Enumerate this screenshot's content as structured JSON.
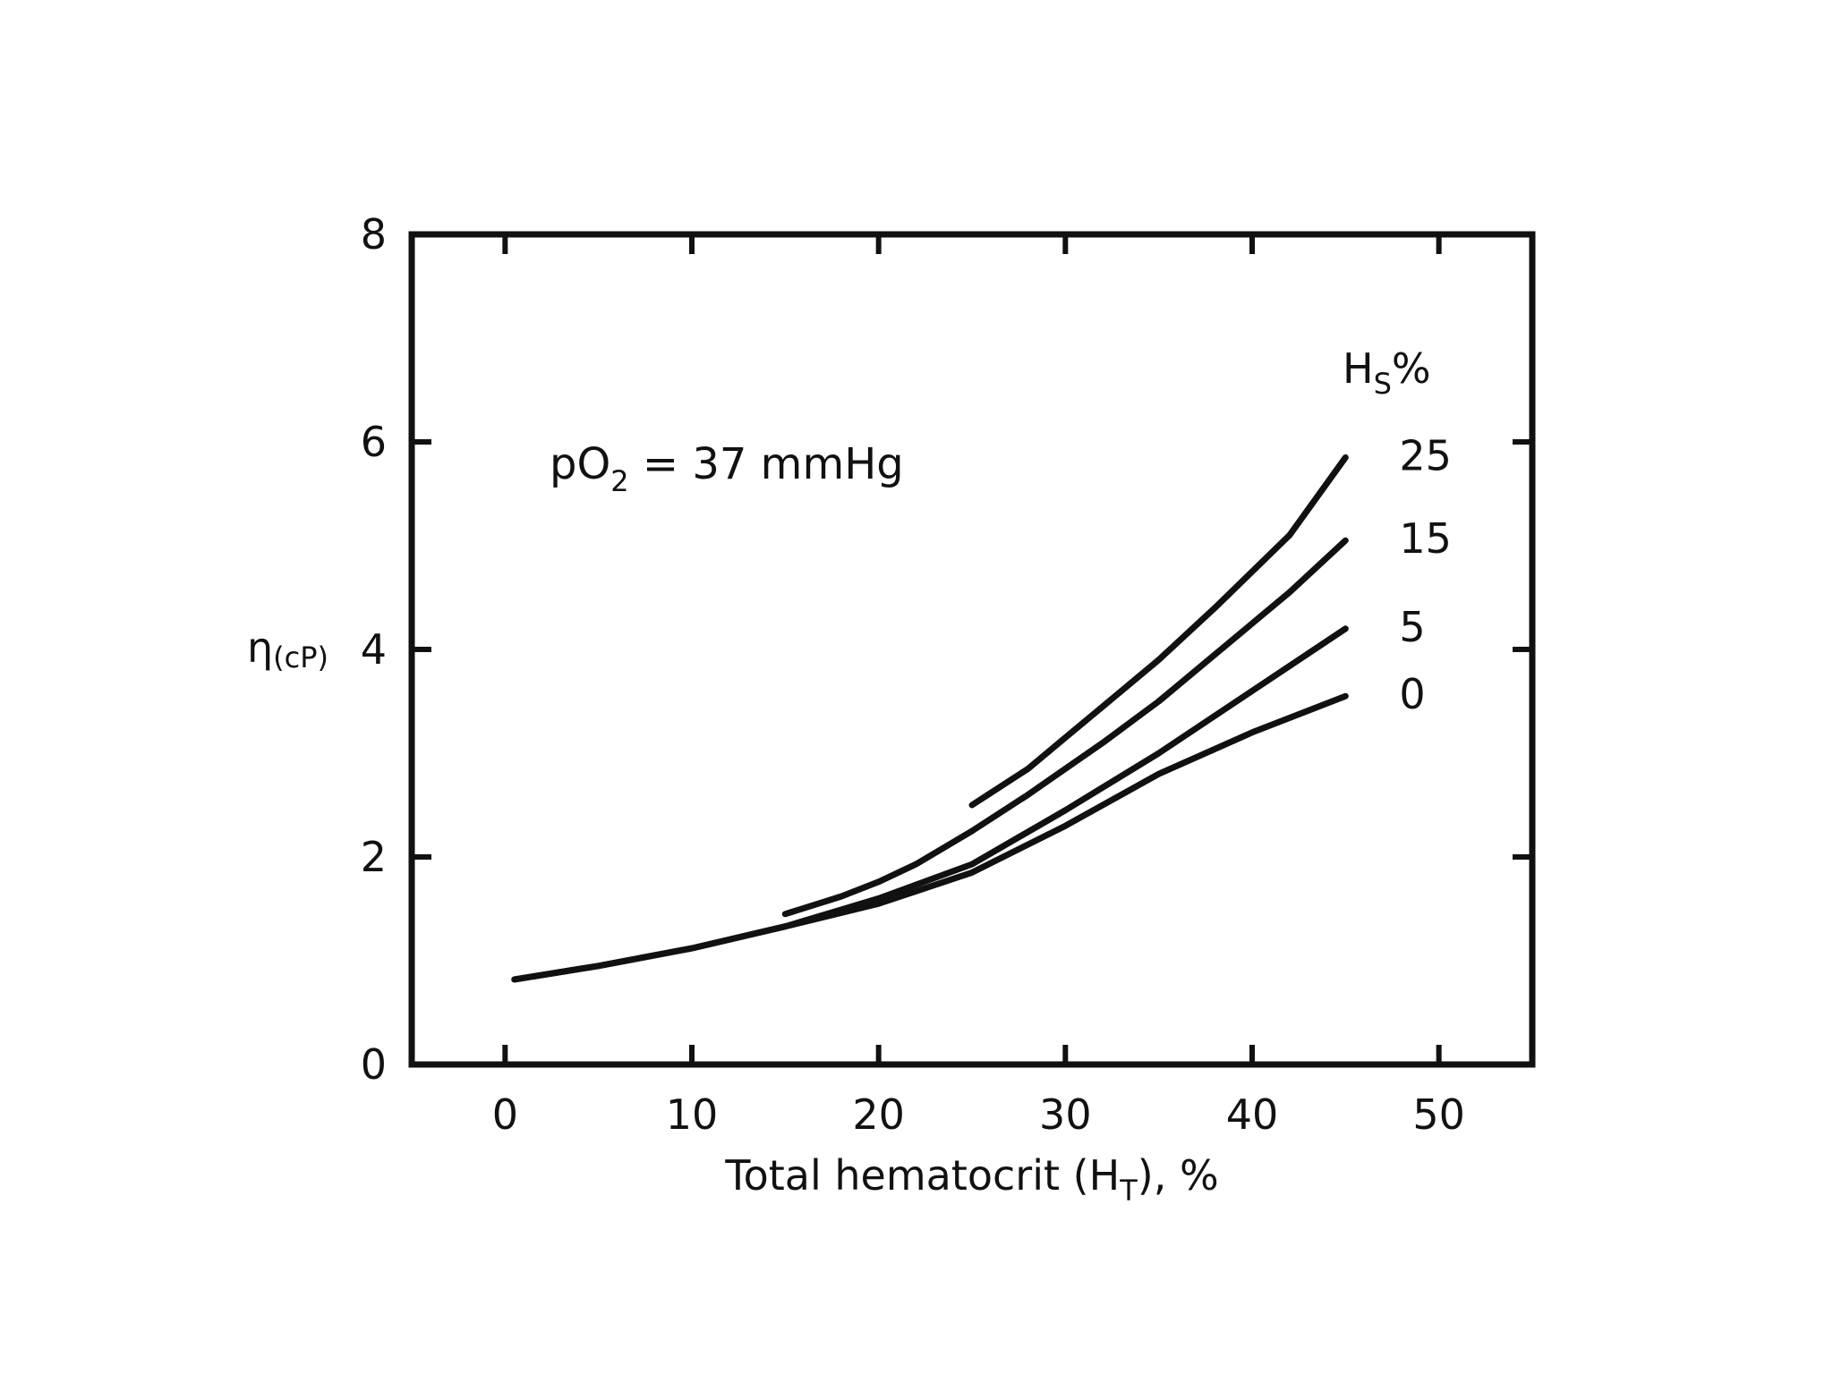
{
  "chart_data": {
    "type": "line",
    "xlabel": "Total hematocrit (H",
    "xlabel_subscript": "T",
    "xlabel_suffix": "), %",
    "ylabel": "η",
    "ylabel_subscript": "(cP)",
    "xlim": [
      -5,
      55
    ],
    "ylim": [
      0,
      8
    ],
    "x_ticks": [
      0,
      10,
      20,
      30,
      40,
      50
    ],
    "y_ticks": [
      0,
      2,
      4,
      6,
      8
    ],
    "annotation": {
      "prefix": "pO",
      "subscript": "2",
      "suffix": " = 37 mmHg"
    },
    "legend_title": {
      "main": "H",
      "subscript": "S",
      "suffix": "%"
    },
    "series": [
      {
        "name": "25",
        "x": [
          25,
          28,
          30,
          32,
          35,
          38,
          40,
          42,
          45
        ],
        "y": [
          2.5,
          2.85,
          3.15,
          3.45,
          3.9,
          4.4,
          4.75,
          5.1,
          5.85
        ]
      },
      {
        "name": "15",
        "x": [
          15,
          18,
          20,
          22,
          25,
          28,
          30,
          32,
          35,
          38,
          40,
          42,
          45
        ],
        "y": [
          1.45,
          1.62,
          1.76,
          1.93,
          2.25,
          2.6,
          2.85,
          3.1,
          3.5,
          3.95,
          4.25,
          4.55,
          5.05
        ]
      },
      {
        "name": "5",
        "x": [
          0.5,
          5,
          10,
          15,
          20,
          25,
          30,
          35,
          40,
          45
        ],
        "y": [
          0.82,
          0.95,
          1.12,
          1.33,
          1.6,
          1.93,
          2.45,
          3.0,
          3.6,
          4.2
        ]
      },
      {
        "name": "0",
        "x": [
          0.5,
          5,
          10,
          15,
          20,
          25,
          30,
          35,
          40,
          45
        ],
        "y": [
          0.82,
          0.95,
          1.12,
          1.33,
          1.55,
          1.85,
          2.3,
          2.8,
          3.2,
          3.55
        ]
      }
    ]
  }
}
